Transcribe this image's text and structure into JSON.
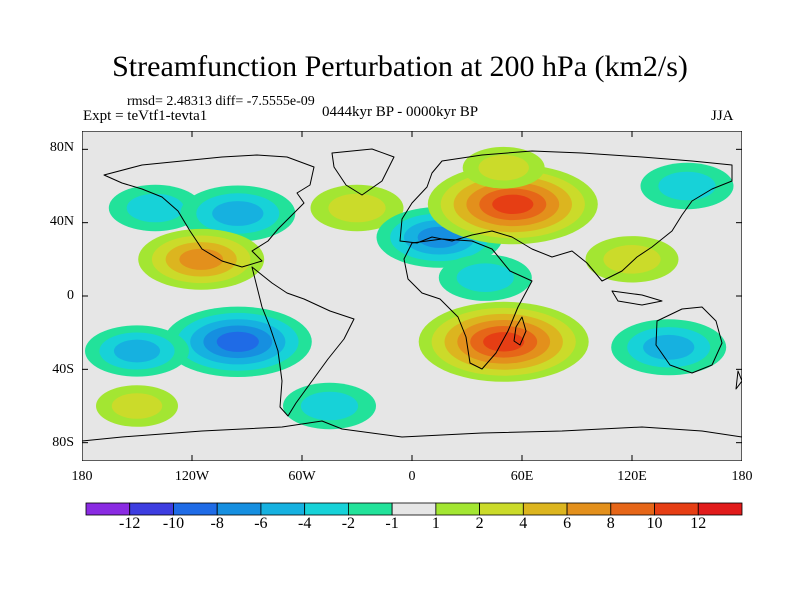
{
  "title": "Streamfunction Perturbation at 200 hPa (km2/s)",
  "stats": "rmsd= 2.48313 diff= -7.5555e-09",
  "experiment": "Expt = teVtf1-tevta1",
  "period": "0444kyr BP - 0000kyr BP",
  "season": "JJA",
  "y_ticks": [
    "80N",
    "40N",
    "0",
    "40S",
    "80S"
  ],
  "x_ticks": [
    "180",
    "120W",
    "60W",
    "0",
    "60E",
    "120E",
    "180"
  ],
  "colorbar": {
    "labels": [
      "-12",
      "-10",
      "-8",
      "-6",
      "-4",
      "-2",
      "-1",
      "1",
      "2",
      "4",
      "6",
      "8",
      "10",
      "12"
    ],
    "colors": [
      "#8a2be2",
      "#3d3de0",
      "#1f6be6",
      "#168fe0",
      "#16b1e0",
      "#17d2d8",
      "#22e29a",
      "#e6e6e6",
      "#a3e632",
      "#cbdb2a",
      "#dcb51f",
      "#e3901c",
      "#e66618",
      "#e63e14",
      "#e11b1b"
    ]
  },
  "chart_data": {
    "type": "heatmap",
    "title": "Streamfunction Perturbation at 200 hPa (km2/s)",
    "lon_range": [
      -180,
      180
    ],
    "lat_range": [
      -90,
      90
    ],
    "levels": [
      -12,
      -10,
      -8,
      -6,
      -4,
      -2,
      -1,
      1,
      2,
      4,
      6,
      8,
      10,
      12
    ],
    "features": [
      {
        "lon": -140,
        "lat": 48,
        "value": -3
      },
      {
        "lon": -95,
        "lat": 45,
        "value": -5
      },
      {
        "lon": -30,
        "lat": 48,
        "value": 3
      },
      {
        "lon": 15,
        "lat": 32,
        "value": -6
      },
      {
        "lon": 55,
        "lat": 50,
        "value": 10
      },
      {
        "lon": 50,
        "lat": 70,
        "value": 2
      },
      {
        "lon": 150,
        "lat": 60,
        "value": -3
      },
      {
        "lon": -115,
        "lat": 20,
        "value": 6
      },
      {
        "lon": 40,
        "lat": 10,
        "value": -3
      },
      {
        "lon": 120,
        "lat": 20,
        "value": 3
      },
      {
        "lon": -95,
        "lat": -25,
        "value": -8
      },
      {
        "lon": -150,
        "lat": -30,
        "value": -4
      },
      {
        "lon": 50,
        "lat": -25,
        "value": 10
      },
      {
        "lon": 140,
        "lat": -28,
        "value": -5
      },
      {
        "lon": -150,
        "lat": -60,
        "value": 2
      },
      {
        "lon": -45,
        "lat": -60,
        "value": -3
      }
    ]
  }
}
